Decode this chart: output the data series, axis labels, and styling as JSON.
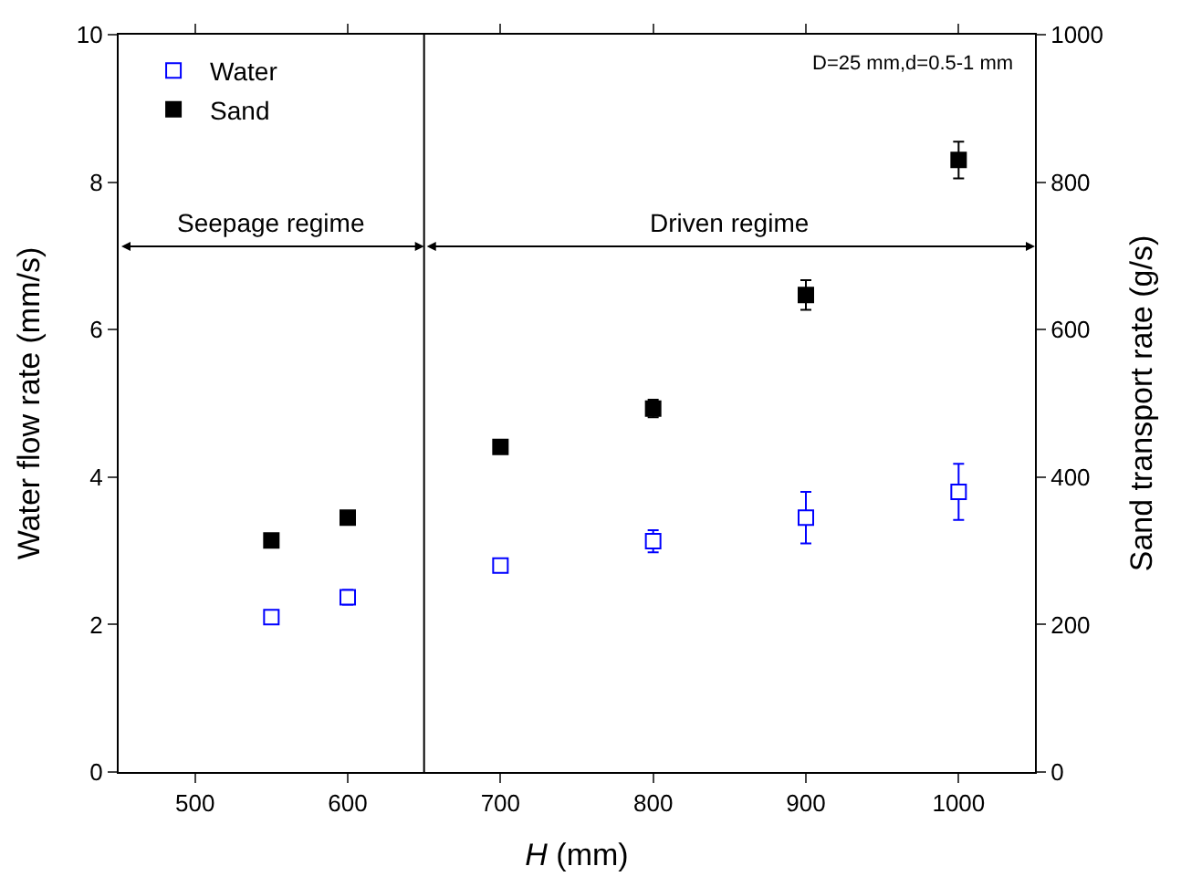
{
  "chart_data": {
    "type": "scatter",
    "xlabel": "H (mm)",
    "ylabel": "Water flow rate (mm/s)",
    "y2label": "Sand transport rate (g/s)",
    "x": [
      550,
      600,
      700,
      800,
      900,
      1000
    ],
    "series": [
      {
        "name": "Water",
        "color": "#0000ff",
        "values": [
          2.1,
          2.37,
          2.8,
          3.13,
          3.45,
          3.8
        ],
        "errors": [
          null,
          0.1,
          null,
          0.15,
          0.35,
          0.38
        ]
      },
      {
        "name": "Sand",
        "color": "#000000",
        "axis": "y2",
        "values": [
          314,
          345,
          441,
          493,
          647,
          830
        ],
        "errors": [
          null,
          null,
          null,
          12,
          20,
          25
        ]
      }
    ],
    "xlim": [
      450,
      1050
    ],
    "xticks": [
      500,
      600,
      700,
      800,
      900,
      1000
    ],
    "ylim": [
      0,
      10
    ],
    "yticks": [
      0,
      2,
      4,
      6,
      8,
      10
    ],
    "y2lim": [
      0,
      1000
    ],
    "y2ticks": [
      0,
      200,
      400,
      600,
      800,
      1000
    ],
    "ref_lines": [
      {
        "axis": "x",
        "value": 650,
        "color": "#000000"
      }
    ],
    "annotations": [
      "Seepage regime",
      "Driven regime",
      "D=25 mm,d=0.5-1 mm"
    ],
    "legend": "top left",
    "grid": false,
    "marker": "square"
  }
}
